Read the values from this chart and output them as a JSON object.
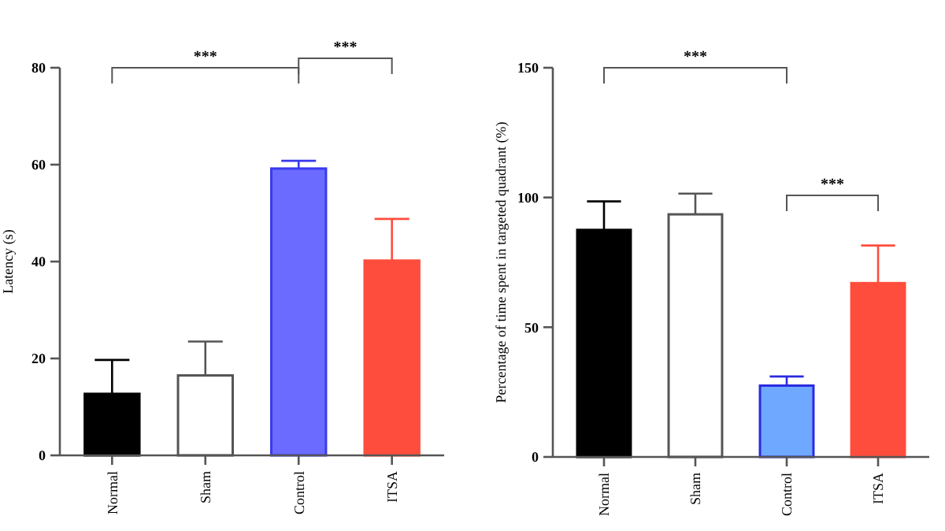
{
  "chart_data": [
    {
      "type": "bar",
      "ylabel": "Latency (s)",
      "categories": [
        "Normal",
        "Sham",
        "Control",
        "ITSA"
      ],
      "values": [
        12.7,
        16.5,
        59.2,
        40.2
      ],
      "colors": [
        "#000000",
        "#ffffff",
        "#6b6bff",
        "#ff4d3d"
      ],
      "errors": [
        7,
        7,
        1.6,
        8.6
      ],
      "ylim": [
        0,
        80
      ],
      "yticks": [
        0,
        20,
        40,
        60,
        80
      ],
      "grid": false,
      "annotations": [
        "***",
        "***"
      ]
    },
    {
      "type": "bar",
      "ylabel": "Percentage of time spent in targeted quadrant (%)",
      "categories": [
        "Normal",
        "Sham",
        "Control",
        "ITSA"
      ],
      "values": [
        87.5,
        93.5,
        27.5,
        67
      ],
      "colors": [
        "#000000",
        "#ffffff",
        "#6fa8ff",
        "#ff4d3d"
      ],
      "errors": [
        11,
        8,
        3.5,
        14.5
      ],
      "ylim": [
        0,
        150
      ],
      "yticks": [
        0,
        50,
        100,
        150
      ],
      "grid": false,
      "annotations": [
        "***",
        "***"
      ]
    }
  ]
}
